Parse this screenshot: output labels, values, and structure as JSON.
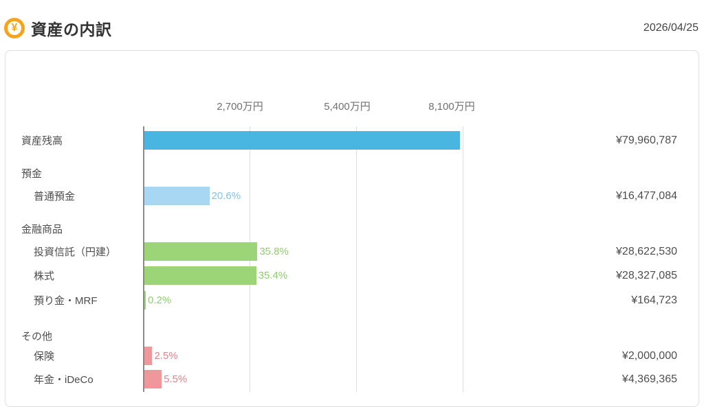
{
  "header": {
    "title": "資産の内訳",
    "date": "2026/04/25",
    "icon": "yen-circle-icon",
    "icon_glyph": "¥",
    "icon_color": "#F5A41C"
  },
  "chart_data": {
    "type": "bar",
    "orientation": "horizontal",
    "title": "資産の内訳",
    "axis_ticks": [
      "2,700万円",
      "5,400万円",
      "8,100万円"
    ],
    "axis_tick_values": [
      27000000,
      54000000,
      81000000
    ],
    "axis_max_value": 81000000,
    "grid": true,
    "colors": {
      "blue": "#49B6E1",
      "lightblue": "#A8D7F3",
      "green": "#9BD578",
      "pink": "#F0979C"
    },
    "percent_colors": {
      "lightblue": "#85C2EB",
      "green": "#8FCE6C",
      "pink": "#E8808C"
    },
    "rows": [
      {
        "kind": "bar",
        "label": "資産残高",
        "value": 79960787,
        "value_text": "¥79,960,787",
        "percent_text": "",
        "color": "blue"
      },
      {
        "kind": "section",
        "label": "預金"
      },
      {
        "kind": "bar",
        "label": "普通預金",
        "value": 16477084,
        "value_text": "¥16,477,084",
        "percent_text": "20.6%",
        "color": "lightblue",
        "percent_color": "lightblue"
      },
      {
        "kind": "section",
        "label": "金融商品"
      },
      {
        "kind": "bar",
        "label": "投資信託（円建）",
        "value": 28622530,
        "value_text": "¥28,622,530",
        "percent_text": "35.8%",
        "color": "green",
        "percent_color": "green"
      },
      {
        "kind": "bar",
        "label": "株式",
        "value": 28327085,
        "value_text": "¥28,327,085",
        "percent_text": "35.4%",
        "color": "green",
        "percent_color": "green"
      },
      {
        "kind": "bar",
        "label": "預り金・MRF",
        "value": 164723,
        "value_text": "¥164,723",
        "percent_text": "0.2%",
        "color": "green",
        "percent_color": "green"
      },
      {
        "kind": "section",
        "label": "その他"
      },
      {
        "kind": "bar",
        "label": "保険",
        "value": 2000000,
        "value_text": "¥2,000,000",
        "percent_text": "2.5%",
        "color": "pink",
        "percent_color": "pink"
      },
      {
        "kind": "bar",
        "label": "年金・iDeCo",
        "value": 4369365,
        "value_text": "¥4,369,365",
        "percent_text": "5.5%",
        "color": "pink",
        "percent_color": "pink"
      }
    ]
  }
}
